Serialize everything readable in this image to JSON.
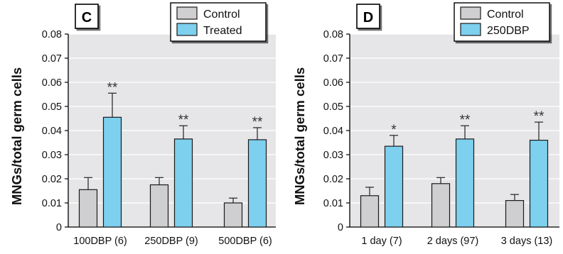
{
  "chart_data": [
    {
      "type": "bar",
      "panel_label": "C",
      "ylabel": "MNGs/total germ cells",
      "ylim": [
        0,
        0.08
      ],
      "yticks": [
        "0",
        "0.01",
        "0.02",
        "0.03",
        "0.04",
        "0.05",
        "0.06",
        "0.07",
        "0.08"
      ],
      "categories": [
        "100DBP (6)",
        "250DBP (9)",
        "500DBP (6)"
      ],
      "legend_position": "top-right",
      "grid": true,
      "series": [
        {
          "name": "Control",
          "color": "#cfcfd1",
          "values": [
            0.0155,
            0.0175,
            0.01
          ],
          "errors": [
            0.005,
            0.003,
            0.002
          ],
          "annotations": [
            "",
            "",
            ""
          ]
        },
        {
          "name": "Treated",
          "color": "#7dd0ee",
          "values": [
            0.0455,
            0.0365,
            0.0362
          ],
          "errors": [
            0.01,
            0.0055,
            0.005
          ],
          "annotations": [
            "**",
            "**",
            "**"
          ]
        }
      ]
    },
    {
      "type": "bar",
      "panel_label": "D",
      "ylabel": "MNGs/total germ cells",
      "ylim": [
        0,
        0.08
      ],
      "yticks": [
        "0",
        "0.01",
        "0.02",
        "0.03",
        "0.04",
        "0.05",
        "0.06",
        "0.07",
        "0.08"
      ],
      "categories": [
        "1 day (7)",
        "2 days (97)",
        "3 days (13)"
      ],
      "legend_position": "top-right",
      "grid": true,
      "series": [
        {
          "name": "Control",
          "color": "#cfcfd1",
          "values": [
            0.013,
            0.018,
            0.011
          ],
          "errors": [
            0.0035,
            0.0025,
            0.0025
          ],
          "annotations": [
            "",
            "",
            ""
          ]
        },
        {
          "name": "250DBP",
          "color": "#7dd0ee",
          "values": [
            0.0335,
            0.0365,
            0.036
          ],
          "errors": [
            0.0045,
            0.0055,
            0.0075
          ],
          "annotations": [
            "*",
            "**",
            "**"
          ]
        }
      ]
    }
  ]
}
